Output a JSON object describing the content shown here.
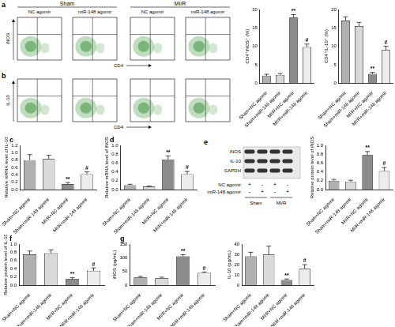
{
  "flow_cytometry": {
    "groups": [
      {
        "label": "Sham",
        "subgroups": [
          "NC agomir",
          "miR-148 agomir"
        ]
      },
      {
        "label": "MI/R",
        "subgroups": [
          "NC agomir",
          "miR-148 agomir"
        ]
      }
    ],
    "rows": [
      {
        "panel": "a",
        "y_label": "iNOS",
        "x_label": "CD4"
      },
      {
        "panel": "b",
        "y_label": "IL-10",
        "x_label": "CD4"
      }
    ]
  },
  "western_blot": {
    "panel": "e",
    "bands": [
      "iNOS",
      "IL-10",
      "GAPDH"
    ],
    "treatments": [
      {
        "label": "NC agomir",
        "signs": [
          "+",
          "-",
          "+",
          "-"
        ]
      },
      {
        "label": "miR-148 agomir",
        "signs": [
          "-",
          "+",
          "-",
          "+"
        ]
      }
    ],
    "groups": [
      "Sham",
      "MI/R"
    ]
  },
  "chart_data": [
    {
      "type": "bar",
      "y_label": "CD4⁺iNOS⁺ (%)",
      "categories": [
        "Sham+NC agomir",
        "Sham+miR-148 agomir",
        "MI/R+NC agomir",
        "MI/R+miR-148 agomir"
      ],
      "values": [
        2.0,
        2.2,
        17.8,
        9.8
      ],
      "errors": [
        0.4,
        0.4,
        0.8,
        0.8
      ],
      "colors": [
        "#b0b0b0",
        "#d9d9d9",
        "#8c8c8c",
        "#ececec"
      ],
      "annotations": [
        {
          "category": "MI/R+NC agomir",
          "text": "**"
        },
        {
          "category": "MI/R+miR-148 agomir",
          "text": "#"
        }
      ],
      "ylim": [
        0,
        20
      ],
      "yticks": [
        0,
        5,
        10,
        15,
        20
      ],
      "grid": false
    },
    {
      "type": "bar",
      "y_label": "CD4⁺IL-10⁺ (%)",
      "categories": [
        "Sham+NC agomir",
        "Sham+miR-148 agomir",
        "MI/R+NC agomir",
        "MI/R+miR-148 agomir"
      ],
      "values": [
        17.0,
        15.5,
        2.5,
        9.0
      ],
      "errors": [
        1.0,
        1.0,
        0.4,
        1.0
      ],
      "colors": [
        "#b0b0b0",
        "#d9d9d9",
        "#8c8c8c",
        "#ececec"
      ],
      "annotations": [
        {
          "category": "MI/R+NC agomir",
          "text": "**"
        },
        {
          "category": "MI/R+miR-148 agomir",
          "text": "#"
        }
      ],
      "ylim": [
        0,
        20
      ],
      "yticks": [
        0,
        5,
        10,
        15,
        20
      ],
      "grid": false
    },
    {
      "type": "bar",
      "panel": "c",
      "y_label": "Relative mRNA level of IL-10",
      "categories": [
        "Sham+NC agomir",
        "Sham+miR-148 agomir",
        "MI/R+NC agomir",
        "MI/R+miR-148 agomir"
      ],
      "values": [
        0.8,
        0.83,
        0.15,
        0.42
      ],
      "errors": [
        0.15,
        0.1,
        0.04,
        0.06
      ],
      "colors": [
        "#b0b0b0",
        "#d9d9d9",
        "#8c8c8c",
        "#ececec"
      ],
      "annotations": [
        {
          "category": "MI/R+NC agomir",
          "text": "**"
        },
        {
          "category": "MI/R+miR-148 agomir",
          "text": "#"
        }
      ],
      "ylim": [
        0,
        1.2
      ],
      "yticks": [
        {
          "value": 0,
          "label": "0.0"
        },
        0.2,
        0.4,
        0.6,
        0.8,
        {
          "value": 1,
          "label": "1.0"
        },
        1.2
      ],
      "grid": false
    },
    {
      "type": "bar",
      "panel": "d",
      "y_label": "Relative mRNA level of iNOS",
      "categories": [
        "Sham+NC agomir",
        "Sham+miR-148 agomir",
        "MI/R+NC agomir",
        "MI/R+miR-148 agomir"
      ],
      "values": [
        0.1,
        0.07,
        0.68,
        0.35
      ],
      "errors": [
        0.02,
        0.01,
        0.08,
        0.06
      ],
      "colors": [
        "#b0b0b0",
        "#d9d9d9",
        "#8c8c8c",
        "#ececec"
      ],
      "annotations": [
        {
          "category": "MI/R+NC agomir",
          "text": "**"
        },
        {
          "category": "MI/R+miR-148 agomir",
          "text": "#"
        }
      ],
      "ylim": [
        0,
        1
      ],
      "yticks": [
        {
          "value": 0,
          "label": "0.0"
        },
        0.2,
        0.4,
        0.6,
        0.8,
        {
          "value": 1,
          "label": "1.0"
        }
      ],
      "grid": false
    },
    {
      "type": "bar",
      "y_label": "Relative protein level of iNOS",
      "categories": [
        "Sham+NC agomir",
        "Sham+miR-148 agomir",
        "MI/R+NC agomir",
        "MI/R+miR-148 agomir"
      ],
      "values": [
        0.2,
        0.18,
        0.78,
        0.42
      ],
      "errors": [
        0.03,
        0.03,
        0.08,
        0.08
      ],
      "colors": [
        "#b0b0b0",
        "#d9d9d9",
        "#8c8c8c",
        "#ececec"
      ],
      "annotations": [
        {
          "category": "MI/R+NC agomir",
          "text": "**"
        },
        {
          "category": "MI/R+miR-148 agomir",
          "text": "#"
        }
      ],
      "ylim": [
        0,
        1
      ],
      "yticks": [
        {
          "value": 0,
          "label": "0.0"
        },
        0.2,
        0.4,
        0.6,
        0.8,
        {
          "value": 1,
          "label": "1.0"
        }
      ],
      "grid": false
    },
    {
      "type": "bar",
      "panel": "f",
      "y_label": "Relative protein level of IL-10",
      "categories": [
        "Sham+NC agomir",
        "Sham+miR-148 agomir",
        "MI/R+NC agomir",
        "MI/R+miR-148 agomir"
      ],
      "values": [
        0.75,
        0.78,
        0.15,
        0.35
      ],
      "errors": [
        0.08,
        0.08,
        0.03,
        0.07
      ],
      "colors": [
        "#b0b0b0",
        "#d9d9d9",
        "#8c8c8c",
        "#ececec"
      ],
      "annotations": [
        {
          "category": "MI/R+NC agomir",
          "text": "**"
        },
        {
          "category": "MI/R+miR-148 agomir",
          "text": "#"
        }
      ],
      "ylim": [
        0,
        1
      ],
      "yticks": [
        {
          "value": 0,
          "label": "0.0"
        },
        0.2,
        0.4,
        0.6,
        0.8,
        {
          "value": 1,
          "label": "1.0"
        }
      ],
      "grid": false
    },
    {
      "type": "bar",
      "panel": "g",
      "y_label": "iNOS (pg/mL)",
      "categories": [
        "Sham+NC agomir",
        "Sham+miR-148 agomir",
        "MI/R+NC agomir",
        "MI/R+miR-148 agomir"
      ],
      "values": [
        28,
        25,
        105,
        45
      ],
      "errors": [
        4,
        4,
        6,
        3
      ],
      "colors": [
        "#b0b0b0",
        "#d9d9d9",
        "#8c8c8c",
        "#ececec"
      ],
      "annotations": [
        {
          "category": "MI/R+NC agomir",
          "text": "**"
        },
        {
          "category": "MI/R+miR-148 agomir",
          "text": "#"
        }
      ],
      "ylim": [
        0,
        150
      ],
      "yticks": [
        0,
        50,
        100,
        150
      ],
      "grid": false
    },
    {
      "type": "bar",
      "y_label": "IL-10 (pg/mL)",
      "categories": [
        "Sham+NC agomir",
        "Sham+miR-148 agomir",
        "MI/R+NC agomir",
        "MI/R+miR-148 agomir"
      ],
      "values": [
        28,
        30,
        5,
        16
      ],
      "errors": [
        4,
        8,
        1,
        4
      ],
      "colors": [
        "#b0b0b0",
        "#d9d9d9",
        "#8c8c8c",
        "#ececec"
      ],
      "annotations": [
        {
          "category": "MI/R+NC agomir",
          "text": "**"
        },
        {
          "category": "MI/R+miR-148 agomir",
          "text": "#"
        }
      ],
      "ylim": [
        0,
        40
      ],
      "yticks": [
        0,
        10,
        20,
        30,
        40
      ],
      "grid": false
    }
  ]
}
